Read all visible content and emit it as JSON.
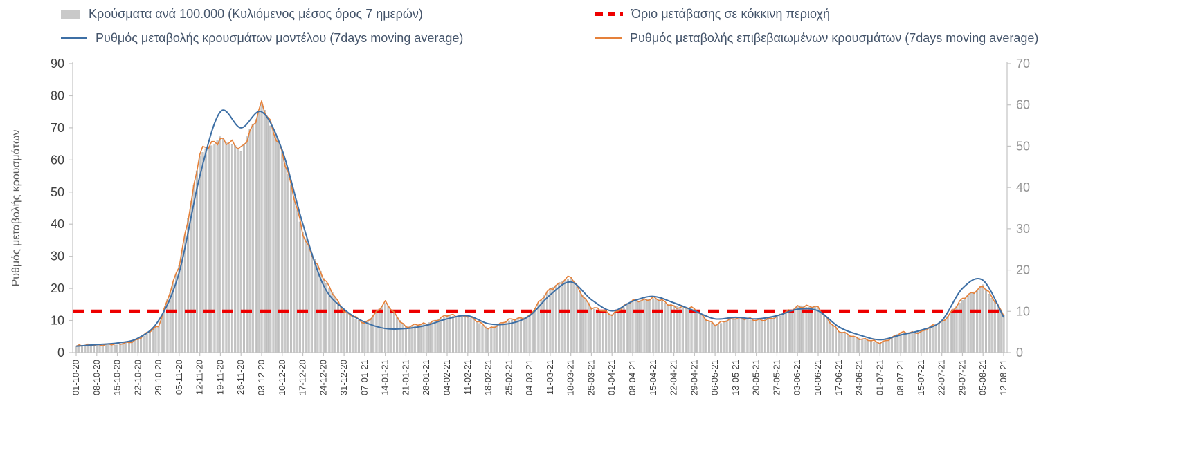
{
  "legend": {
    "bars": "Κρούσματα ανά 100.000 (Κυλιόμενος μέσος όρος 7 ημερών)",
    "threshold": "Όριο μετάβασης σε κόκκινη περιοχή",
    "model": "Ρυθμός μεταβολής κρουσμάτων μοντέλου (7days moving average)",
    "confirmed": "Ρυθμός μεταβολής επιβεβαιωμένων κρουσμάτων (7days moving average)"
  },
  "colors": {
    "bars_fill": "#c9c9c9",
    "bars_stroke": "#a8a8a8",
    "model_line": "#3d6fa5",
    "confirmed_line": "#e5813a",
    "threshold_line": "#ee0000",
    "axis_line": "#c3c3c3",
    "tick_label_left": "#404040",
    "tick_label_right": "#949494",
    "x_tick_label": "#404040",
    "legend_text": "#44546a",
    "y_title": "#595959"
  },
  "chart_data": {
    "type": "mixed",
    "sampling": "weekly anchor values read at each x tick; underlying plotted series is daily",
    "categories": [
      "01-10-20",
      "08-10-20",
      "15-10-20",
      "22-10-20",
      "29-10-20",
      "05-11-20",
      "12-11-20",
      "19-11-20",
      "26-11-20",
      "03-12-20",
      "10-12-20",
      "17-12-20",
      "24-12-20",
      "31-12-20",
      "07-01-21",
      "14-01-21",
      "21-01-21",
      "28-01-21",
      "04-02-21",
      "11-02-21",
      "18-02-21",
      "25-02-21",
      "04-03-21",
      "11-03-21",
      "18-03-21",
      "25-03-21",
      "01-04-21",
      "08-04-21",
      "15-04-21",
      "22-04-21",
      "29-04-21",
      "06-05-21",
      "13-05-21",
      "20-05-21",
      "27-05-21",
      "03-06-21",
      "10-06-21",
      "17-06-21",
      "24-06-21",
      "01-07-21",
      "08-07-21",
      "15-07-21",
      "22-07-21",
      "29-07-21",
      "05-08-21",
      "12-08-21"
    ],
    "y_left": {
      "label": "Ρυθμός μεταβολής κρουσμάτων",
      "min": 0,
      "max": 90,
      "ticks": [
        0,
        10,
        20,
        30,
        40,
        50,
        60,
        70,
        80,
        90
      ]
    },
    "y_right": {
      "label": "",
      "min": 0,
      "max": 70,
      "ticks": [
        0,
        10,
        20,
        30,
        40,
        50,
        60,
        70
      ]
    },
    "series": [
      {
        "name": "Κρούσματα ανά 100.000 (Κυλιόμενος μέσος όρος 7 ημερών)",
        "type": "bar",
        "axis": "right",
        "values": [
          1.6,
          1.9,
          1.9,
          3.1,
          6.6,
          21,
          48,
          52,
          49,
          60,
          49,
          29,
          18,
          10,
          7,
          12,
          6.2,
          7,
          8.9,
          8.9,
          5.8,
          7.8,
          8.9,
          15.6,
          18.3,
          10.9,
          9.3,
          12.4,
          13.2,
          11.3,
          10.5,
          6.6,
          8.6,
          7.8,
          8.6,
          11.3,
          10.9,
          5.1,
          3.5,
          2.3,
          4.7,
          5.1,
          7.4,
          12.8,
          16.3,
          9.3
        ]
      },
      {
        "name": "Ρυθμός μεταβολής κρουσμάτων μοντέλου (7days moving average)",
        "type": "line",
        "axis": "left",
        "values": [
          2,
          2.5,
          3,
          4.5,
          10,
          25,
          55,
          75,
          70,
          75,
          63,
          40,
          21,
          13.5,
          9.5,
          7.5,
          7.5,
          8.5,
          10.5,
          11.5,
          9,
          9,
          11.5,
          18,
          22,
          16.5,
          13,
          16,
          17.5,
          15.5,
          13,
          10.5,
          11,
          10.5,
          11.5,
          13.5,
          13,
          8,
          5.5,
          4,
          5.5,
          7,
          10,
          20,
          22.5,
          11
        ]
      },
      {
        "name": "Ρυθμός μεταβολής επιβεβαιωμένων κρουσμάτων (7days moving average)",
        "type": "line",
        "axis": "left",
        "values": [
          2,
          2.5,
          2.5,
          4,
          8.5,
          27,
          62,
          67,
          63,
          77,
          63,
          37,
          23,
          13,
          9,
          15.5,
          8,
          9,
          11.5,
          11.5,
          7.5,
          10,
          11.5,
          20,
          23.5,
          14,
          12,
          16,
          17,
          14.5,
          13.5,
          8.5,
          11,
          10,
          11,
          14.5,
          14,
          6.5,
          4.5,
          3,
          6,
          6.5,
          9.5,
          16.5,
          21,
          12
        ]
      },
      {
        "name": "Όριο μετάβασης σε κόκκινη περιοχή",
        "type": "threshold",
        "axis": "right",
        "value_right_axis": 10,
        "value_left_axis": 12.9
      }
    ],
    "legend_position": "top",
    "grid": "off"
  }
}
